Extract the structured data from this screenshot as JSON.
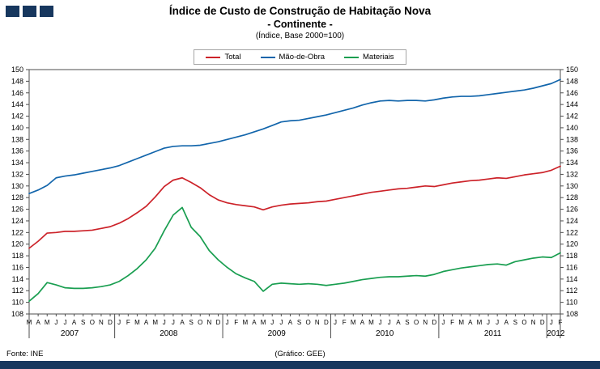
{
  "header": {
    "title_line1": "Índice de Custo de Construção de Habitação Nova",
    "title_line2": "- Continente -",
    "title_line3": "(Índice, Base 2000=100)"
  },
  "legend": [
    {
      "label": "Total"
    },
    {
      "label": "Mão-de-Obra"
    },
    {
      "label": "Materiais"
    }
  ],
  "footer": {
    "source": "Fonte: INE",
    "credit": "(Gráfico: GEE)"
  },
  "colors": {
    "brand_navy": "#17375e",
    "total_red": "#cc2229",
    "labour_blue": "#1265ab",
    "materials_green": "#199e50"
  },
  "chart_data": {
    "type": "line",
    "title": "Índice de Custo de Construção de Habitação Nova - Continente (Índice, Base 2000=100)",
    "ylim": [
      108,
      150
    ],
    "ytick_step": 2,
    "grid": false,
    "legend_position": "top-center",
    "months": [
      "M",
      "A",
      "M",
      "J",
      "J",
      "A",
      "S",
      "O",
      "N",
      "D",
      "J",
      "F",
      "M",
      "A",
      "M",
      "J",
      "J",
      "A",
      "S",
      "O",
      "N",
      "D",
      "J",
      "F",
      "M",
      "A",
      "M",
      "J",
      "J",
      "A",
      "S",
      "O",
      "N",
      "D",
      "J",
      "F",
      "M",
      "A",
      "M",
      "J",
      "J",
      "A",
      "S",
      "O",
      "N",
      "D",
      "J",
      "F",
      "M",
      "A",
      "M",
      "J",
      "J",
      "A",
      "S",
      "O",
      "N",
      "D",
      "J",
      "F"
    ],
    "years": [
      {
        "label": "2007",
        "count": 10
      },
      {
        "label": "2008",
        "count": 12
      },
      {
        "label": "2009",
        "count": 12
      },
      {
        "label": "2010",
        "count": 12
      },
      {
        "label": "2011",
        "count": 12
      },
      {
        "label": "2012",
        "count": 2
      }
    ],
    "series": [
      {
        "name": "Total",
        "color": "#cc2229",
        "values": [
          119.3,
          120.5,
          121.9,
          122.0,
          122.2,
          122.2,
          122.3,
          122.4,
          122.7,
          123.0,
          123.6,
          124.4,
          125.4,
          126.5,
          128.1,
          129.9,
          131.0,
          131.4,
          130.6,
          129.7,
          128.5,
          127.6,
          127.1,
          126.8,
          126.6,
          126.4,
          125.9,
          126.4,
          126.7,
          126.9,
          127.0,
          127.1,
          127.3,
          127.4,
          127.7,
          128.0,
          128.3,
          128.6,
          128.9,
          129.1,
          129.3,
          129.5,
          129.6,
          129.8,
          130.0,
          129.9,
          130.2,
          130.5,
          130.7,
          130.9,
          131.0,
          131.2,
          131.4,
          131.3,
          131.6,
          131.9,
          132.1,
          132.3,
          132.7,
          133.4
        ]
      },
      {
        "name": "Mão-de-Obra",
        "color": "#1265ab",
        "values": [
          128.7,
          129.3,
          130.1,
          131.4,
          131.7,
          131.9,
          132.2,
          132.5,
          132.8,
          133.1,
          133.5,
          134.1,
          134.7,
          135.3,
          135.9,
          136.5,
          136.8,
          136.9,
          136.9,
          137.0,
          137.3,
          137.6,
          138.0,
          138.4,
          138.8,
          139.3,
          139.8,
          140.4,
          141.0,
          141.2,
          141.3,
          141.6,
          141.9,
          142.2,
          142.6,
          143.0,
          143.4,
          143.9,
          144.3,
          144.6,
          144.7,
          144.6,
          144.7,
          144.7,
          144.6,
          144.8,
          145.1,
          145.3,
          145.4,
          145.4,
          145.5,
          145.7,
          145.9,
          146.1,
          146.3,
          146.5,
          146.8,
          147.2,
          147.6,
          148.3
        ]
      },
      {
        "name": "Materiais",
        "color": "#199e50",
        "values": [
          110.2,
          111.5,
          113.4,
          113.0,
          112.5,
          112.4,
          112.4,
          112.5,
          112.7,
          113.0,
          113.6,
          114.6,
          115.8,
          117.3,
          119.3,
          122.3,
          125.0,
          126.3,
          122.9,
          121.3,
          118.9,
          117.3,
          116.0,
          114.9,
          114.2,
          113.6,
          111.9,
          113.1,
          113.3,
          113.2,
          113.1,
          113.2,
          113.1,
          112.9,
          113.1,
          113.3,
          113.6,
          113.9,
          114.1,
          114.3,
          114.4,
          114.4,
          114.5,
          114.6,
          114.5,
          114.8,
          115.3,
          115.6,
          115.9,
          116.1,
          116.3,
          116.5,
          116.6,
          116.4,
          117.0,
          117.3,
          117.6,
          117.8,
          117.7,
          118.5
        ]
      }
    ]
  }
}
